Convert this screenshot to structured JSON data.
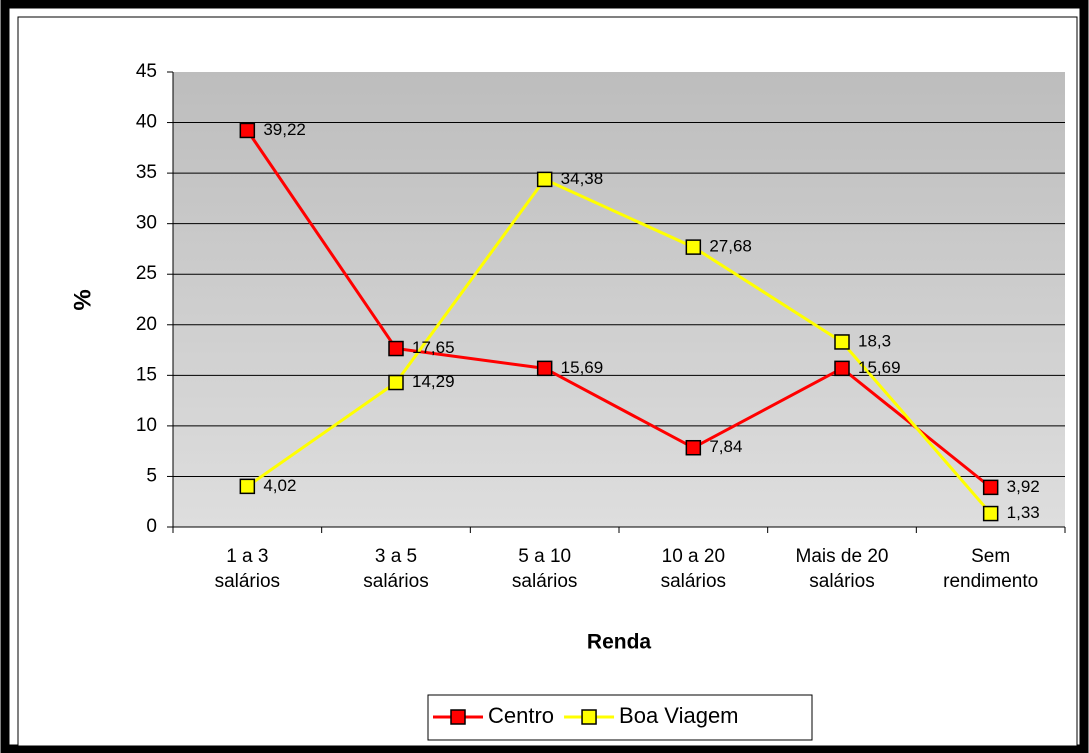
{
  "chart_data": {
    "type": "line",
    "x_label": "Renda",
    "y_label": "%",
    "categories": [
      "1 a 3 salários",
      "3 a 5 salários",
      "5 a 10 salários",
      "10 a 20 salários",
      "Mais de 20 salários",
      "Sem rendimento"
    ],
    "series": [
      {
        "name": "Centro",
        "color": "#ff0000",
        "values": [
          39.22,
          17.65,
          15.69,
          7.84,
          15.69,
          3.92
        ],
        "value_labels": [
          "39,22",
          "17,65",
          "15,69",
          "7,84",
          "15,69",
          "3,92"
        ]
      },
      {
        "name": "Boa Viagem",
        "color": "#ffff00",
        "values": [
          4.02,
          14.29,
          34.38,
          27.68,
          18.3,
          1.33
        ],
        "value_labels": [
          "4,02",
          "14,29",
          "34,38",
          "27,68",
          "18,3",
          "1,33"
        ]
      }
    ],
    "ylim": [
      0,
      45
    ],
    "yticks": [
      0,
      5,
      10,
      15,
      20,
      25,
      30,
      35,
      40,
      45
    ],
    "grid": true,
    "legend": "bottom"
  }
}
